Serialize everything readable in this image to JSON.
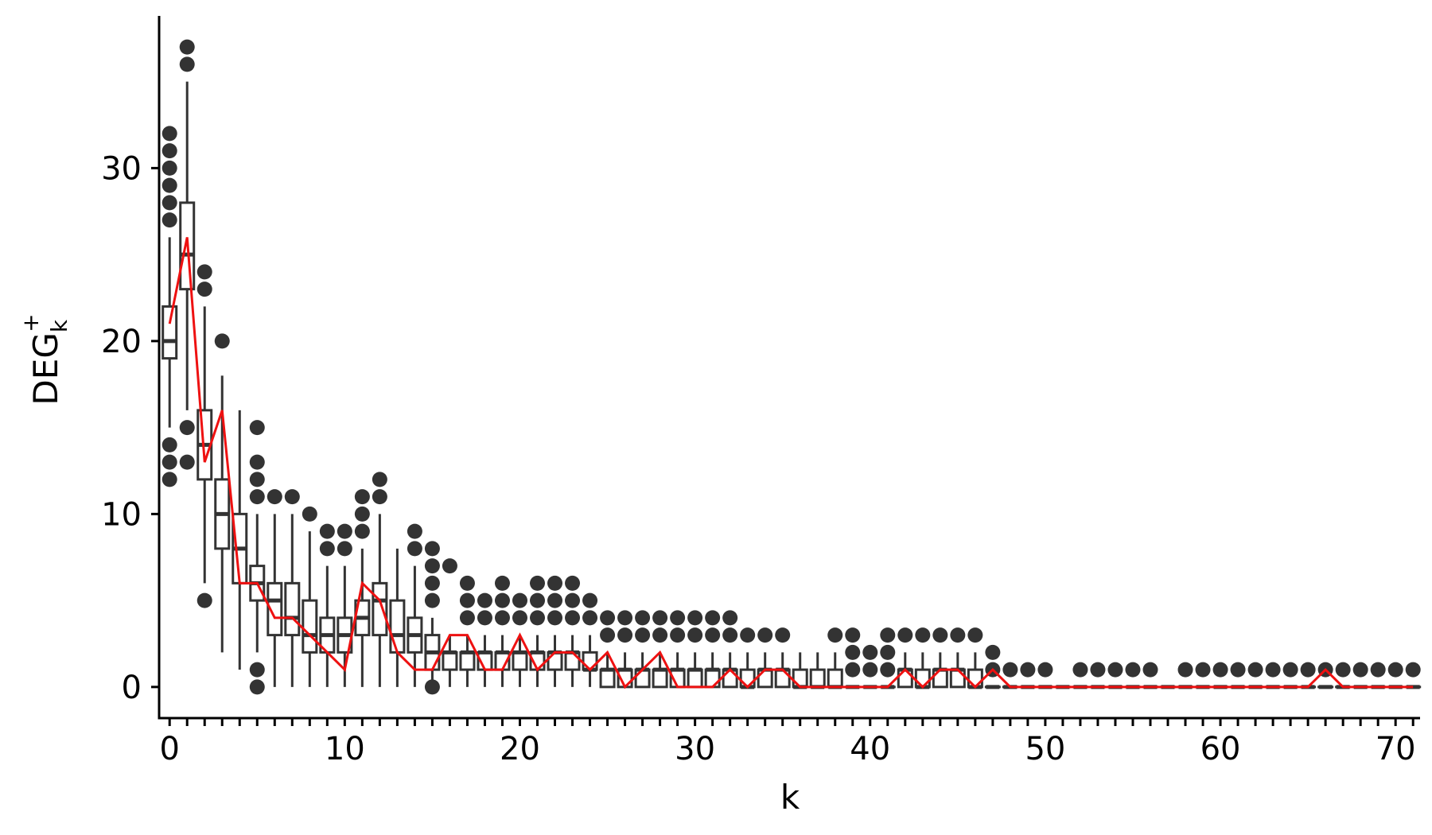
{
  "chart_data": {
    "type": "box",
    "xlabel": "k",
    "ylabel": {
      "base": "DEG",
      "superscript": "+",
      "subscript": "k"
    },
    "xlim": [
      -0.6,
      71.4
    ],
    "ylim": [
      -1.8,
      38.8
    ],
    "x_ticks": [
      0,
      10,
      20,
      30,
      40,
      50,
      60,
      70
    ],
    "y_ticks": [
      0,
      10,
      20,
      30
    ],
    "grid": false,
    "legend": "none",
    "colors": {
      "box": "#333333",
      "outlier": "#333333",
      "median_line": "#ee1111",
      "axis": "#000000"
    },
    "boxes": [
      {
        "k": 0,
        "q1": 19,
        "median": 20,
        "q3": 22,
        "whisker_low": 15,
        "whisker_high": 26,
        "outliers": [
          12,
          13,
          14,
          27,
          28,
          29,
          30,
          31,
          32
        ]
      },
      {
        "k": 1,
        "q1": 23,
        "median": 25,
        "q3": 28,
        "whisker_low": 16,
        "whisker_high": 35,
        "outliers": [
          13,
          15,
          36,
          37
        ]
      },
      {
        "k": 2,
        "q1": 12,
        "median": 14,
        "q3": 16,
        "whisker_low": 6,
        "whisker_high": 22,
        "outliers": [
          5,
          23,
          24
        ]
      },
      {
        "k": 3,
        "q1": 8,
        "median": 10,
        "q3": 12,
        "whisker_low": 2,
        "whisker_high": 18,
        "outliers": [
          20
        ]
      },
      {
        "k": 4,
        "q1": 6,
        "median": 8,
        "q3": 10,
        "whisker_low": 1,
        "whisker_high": 16,
        "outliers": []
      },
      {
        "k": 5,
        "q1": 5,
        "median": 6,
        "q3": 7,
        "whisker_low": 2,
        "whisker_high": 10,
        "outliers": [
          0,
          1,
          11,
          12,
          13,
          15
        ]
      },
      {
        "k": 6,
        "q1": 3,
        "median": 5,
        "q3": 6,
        "whisker_low": 0,
        "whisker_high": 10,
        "outliers": [
          11
        ]
      },
      {
        "k": 7,
        "q1": 3,
        "median": 4,
        "q3": 6,
        "whisker_low": 0,
        "whisker_high": 10,
        "outliers": [
          11
        ]
      },
      {
        "k": 8,
        "q1": 2,
        "median": 3,
        "q3": 5,
        "whisker_low": 0,
        "whisker_high": 9,
        "outliers": [
          10
        ]
      },
      {
        "k": 9,
        "q1": 2,
        "median": 3,
        "q3": 4,
        "whisker_low": 0,
        "whisker_high": 7,
        "outliers": [
          8,
          9
        ]
      },
      {
        "k": 10,
        "q1": 2,
        "median": 3,
        "q3": 4,
        "whisker_low": 0,
        "whisker_high": 7,
        "outliers": [
          8,
          9
        ]
      },
      {
        "k": 11,
        "q1": 3,
        "median": 4,
        "q3": 5,
        "whisker_low": 0,
        "whisker_high": 8,
        "outliers": [
          9,
          10,
          11
        ]
      },
      {
        "k": 12,
        "q1": 3,
        "median": 5,
        "q3": 6,
        "whisker_low": 0,
        "whisker_high": 10,
        "outliers": [
          11,
          12
        ]
      },
      {
        "k": 13,
        "q1": 2,
        "median": 3,
        "q3": 5,
        "whisker_low": 0,
        "whisker_high": 8,
        "outliers": []
      },
      {
        "k": 14,
        "q1": 2,
        "median": 3,
        "q3": 4,
        "whisker_low": 0,
        "whisker_high": 7,
        "outliers": [
          8,
          9
        ]
      },
      {
        "k": 15,
        "q1": 1,
        "median": 2,
        "q3": 3,
        "whisker_low": 0,
        "whisker_high": 4,
        "outliers": [
          0,
          5,
          6,
          7,
          8
        ]
      },
      {
        "k": 16,
        "q1": 1,
        "median": 2,
        "q3": 2,
        "whisker_low": 0,
        "whisker_high": 3,
        "outliers": [
          7
        ]
      },
      {
        "k": 17,
        "q1": 1,
        "median": 2,
        "q3": 2,
        "whisker_low": 0,
        "whisker_high": 3,
        "outliers": [
          4,
          5,
          6
        ]
      },
      {
        "k": 18,
        "q1": 1,
        "median": 2,
        "q3": 2,
        "whisker_low": 0,
        "whisker_high": 3,
        "outliers": [
          4,
          5
        ]
      },
      {
        "k": 19,
        "q1": 1,
        "median": 2,
        "q3": 2,
        "whisker_low": 0,
        "whisker_high": 3,
        "outliers": [
          4,
          5,
          6
        ]
      },
      {
        "k": 20,
        "q1": 1,
        "median": 2,
        "q3": 2,
        "whisker_low": 0,
        "whisker_high": 3,
        "outliers": [
          4,
          5
        ]
      },
      {
        "k": 21,
        "q1": 1,
        "median": 2,
        "q3": 2,
        "whisker_low": 0,
        "whisker_high": 3,
        "outliers": [
          4,
          5,
          6
        ]
      },
      {
        "k": 22,
        "q1": 1,
        "median": 2,
        "q3": 2,
        "whisker_low": 0,
        "whisker_high": 3,
        "outliers": [
          4,
          5,
          6
        ]
      },
      {
        "k": 23,
        "q1": 1,
        "median": 2,
        "q3": 2,
        "whisker_low": 0,
        "whisker_high": 3,
        "outliers": [
          4,
          5,
          6
        ]
      },
      {
        "k": 24,
        "q1": 1,
        "median": 1,
        "q3": 2,
        "whisker_low": 0,
        "whisker_high": 3,
        "outliers": [
          4,
          5
        ]
      },
      {
        "k": 25,
        "q1": 0,
        "median": 1,
        "q3": 1,
        "whisker_low": 0,
        "whisker_high": 2,
        "outliers": [
          3,
          4
        ]
      },
      {
        "k": 26,
        "q1": 0,
        "median": 1,
        "q3": 1,
        "whisker_low": 0,
        "whisker_high": 2,
        "outliers": [
          3,
          4
        ]
      },
      {
        "k": 27,
        "q1": 0,
        "median": 1,
        "q3": 1,
        "whisker_low": 0,
        "whisker_high": 2,
        "outliers": [
          3,
          4
        ]
      },
      {
        "k": 28,
        "q1": 0,
        "median": 1,
        "q3": 1,
        "whisker_low": 0,
        "whisker_high": 2,
        "outliers": [
          3,
          4
        ]
      },
      {
        "k": 29,
        "q1": 0,
        "median": 1,
        "q3": 1,
        "whisker_low": 0,
        "whisker_high": 2,
        "outliers": [
          3,
          4
        ]
      },
      {
        "k": 30,
        "q1": 0,
        "median": 1,
        "q3": 1,
        "whisker_low": 0,
        "whisker_high": 2,
        "outliers": [
          3,
          4
        ]
      },
      {
        "k": 31,
        "q1": 0,
        "median": 1,
        "q3": 1,
        "whisker_low": 0,
        "whisker_high": 2,
        "outliers": [
          3,
          4
        ]
      },
      {
        "k": 32,
        "q1": 0,
        "median": 1,
        "q3": 1,
        "whisker_low": 0,
        "whisker_high": 2,
        "outliers": [
          3,
          4
        ]
      },
      {
        "k": 33,
        "q1": 0,
        "median": 0,
        "q3": 1,
        "whisker_low": 0,
        "whisker_high": 2,
        "outliers": [
          3
        ]
      },
      {
        "k": 34,
        "q1": 0,
        "median": 1,
        "q3": 1,
        "whisker_low": 0,
        "whisker_high": 2,
        "outliers": [
          3
        ]
      },
      {
        "k": 35,
        "q1": 0,
        "median": 1,
        "q3": 1,
        "whisker_low": 0,
        "whisker_high": 2,
        "outliers": [
          3
        ]
      },
      {
        "k": 36,
        "q1": 0,
        "median": 0,
        "q3": 1,
        "whisker_low": 0,
        "whisker_high": 2,
        "outliers": []
      },
      {
        "k": 37,
        "q1": 0,
        "median": 0,
        "q3": 1,
        "whisker_low": 0,
        "whisker_high": 2,
        "outliers": []
      },
      {
        "k": 38,
        "q1": 0,
        "median": 0,
        "q3": 1,
        "whisker_low": 0,
        "whisker_high": 2,
        "outliers": [
          3
        ]
      },
      {
        "k": 39,
        "q1": 0,
        "median": 0,
        "q3": 0,
        "whisker_low": 0,
        "whisker_high": 0,
        "outliers": [
          1,
          2,
          3
        ]
      },
      {
        "k": 40,
        "q1": 0,
        "median": 0,
        "q3": 0,
        "whisker_low": 0,
        "whisker_high": 0,
        "outliers": [
          1,
          2
        ]
      },
      {
        "k": 41,
        "q1": 0,
        "median": 0,
        "q3": 0,
        "whisker_low": 0,
        "whisker_high": 0,
        "outliers": [
          1,
          2,
          3
        ]
      },
      {
        "k": 42,
        "q1": 0,
        "median": 1,
        "q3": 1,
        "whisker_low": 0,
        "whisker_high": 2,
        "outliers": [
          3
        ]
      },
      {
        "k": 43,
        "q1": 0,
        "median": 0,
        "q3": 1,
        "whisker_low": 0,
        "whisker_high": 2,
        "outliers": [
          3
        ]
      },
      {
        "k": 44,
        "q1": 0,
        "median": 1,
        "q3": 1,
        "whisker_low": 0,
        "whisker_high": 2,
        "outliers": [
          3
        ]
      },
      {
        "k": 45,
        "q1": 0,
        "median": 1,
        "q3": 1,
        "whisker_low": 0,
        "whisker_high": 2,
        "outliers": [
          3
        ]
      },
      {
        "k": 46,
        "q1": 0,
        "median": 0,
        "q3": 1,
        "whisker_low": 0,
        "whisker_high": 2,
        "outliers": [
          3
        ]
      },
      {
        "k": 47,
        "q1": 0,
        "median": 0,
        "q3": 0,
        "whisker_low": 0,
        "whisker_high": 0,
        "outliers": [
          1,
          2
        ]
      },
      {
        "k": 48,
        "q1": 0,
        "median": 0,
        "q3": 0,
        "whisker_low": 0,
        "whisker_high": 0,
        "outliers": [
          1
        ]
      },
      {
        "k": 49,
        "q1": 0,
        "median": 0,
        "q3": 0,
        "whisker_low": 0,
        "whisker_high": 0,
        "outliers": [
          1
        ]
      },
      {
        "k": 50,
        "q1": 0,
        "median": 0,
        "q3": 0,
        "whisker_low": 0,
        "whisker_high": 0,
        "outliers": [
          1
        ]
      },
      {
        "k": 51,
        "q1": 0,
        "median": 0,
        "q3": 0,
        "whisker_low": 0,
        "whisker_high": 0,
        "outliers": []
      },
      {
        "k": 52,
        "q1": 0,
        "median": 0,
        "q3": 0,
        "whisker_low": 0,
        "whisker_high": 0,
        "outliers": [
          1
        ]
      },
      {
        "k": 53,
        "q1": 0,
        "median": 0,
        "q3": 0,
        "whisker_low": 0,
        "whisker_high": 0,
        "outliers": [
          1
        ]
      },
      {
        "k": 54,
        "q1": 0,
        "median": 0,
        "q3": 0,
        "whisker_low": 0,
        "whisker_high": 0,
        "outliers": [
          1
        ]
      },
      {
        "k": 55,
        "q1": 0,
        "median": 0,
        "q3": 0,
        "whisker_low": 0,
        "whisker_high": 0,
        "outliers": [
          1
        ]
      },
      {
        "k": 56,
        "q1": 0,
        "median": 0,
        "q3": 0,
        "whisker_low": 0,
        "whisker_high": 0,
        "outliers": [
          1
        ]
      },
      {
        "k": 57,
        "q1": 0,
        "median": 0,
        "q3": 0,
        "whisker_low": 0,
        "whisker_high": 0,
        "outliers": []
      },
      {
        "k": 58,
        "q1": 0,
        "median": 0,
        "q3": 0,
        "whisker_low": 0,
        "whisker_high": 0,
        "outliers": [
          1
        ]
      },
      {
        "k": 59,
        "q1": 0,
        "median": 0,
        "q3": 0,
        "whisker_low": 0,
        "whisker_high": 0,
        "outliers": [
          1
        ]
      },
      {
        "k": 60,
        "q1": 0,
        "median": 0,
        "q3": 0,
        "whisker_low": 0,
        "whisker_high": 0,
        "outliers": [
          1
        ]
      },
      {
        "k": 61,
        "q1": 0,
        "median": 0,
        "q3": 0,
        "whisker_low": 0,
        "whisker_high": 0,
        "outliers": [
          1
        ]
      },
      {
        "k": 62,
        "q1": 0,
        "median": 0,
        "q3": 0,
        "whisker_low": 0,
        "whisker_high": 0,
        "outliers": [
          1
        ]
      },
      {
        "k": 63,
        "q1": 0,
        "median": 0,
        "q3": 0,
        "whisker_low": 0,
        "whisker_high": 0,
        "outliers": [
          1
        ]
      },
      {
        "k": 64,
        "q1": 0,
        "median": 0,
        "q3": 0,
        "whisker_low": 0,
        "whisker_high": 0,
        "outliers": [
          1
        ]
      },
      {
        "k": 65,
        "q1": 0,
        "median": 0,
        "q3": 0,
        "whisker_low": 0,
        "whisker_high": 0,
        "outliers": [
          1
        ]
      },
      {
        "k": 66,
        "q1": 0,
        "median": 0,
        "q3": 0,
        "whisker_low": 0,
        "whisker_high": 0,
        "outliers": [
          1
        ]
      },
      {
        "k": 67,
        "q1": 0,
        "median": 0,
        "q3": 0,
        "whisker_low": 0,
        "whisker_high": 0,
        "outliers": [
          1
        ]
      },
      {
        "k": 68,
        "q1": 0,
        "median": 0,
        "q3": 0,
        "whisker_low": 0,
        "whisker_high": 0,
        "outliers": [
          1
        ]
      },
      {
        "k": 69,
        "q1": 0,
        "median": 0,
        "q3": 0,
        "whisker_low": 0,
        "whisker_high": 0,
        "outliers": [
          1
        ]
      },
      {
        "k": 70,
        "q1": 0,
        "median": 0,
        "q3": 0,
        "whisker_low": 0,
        "whisker_high": 0,
        "outliers": [
          1
        ]
      },
      {
        "k": 71,
        "q1": 0,
        "median": 0,
        "q3": 0,
        "whisker_low": 0,
        "whisker_high": 0,
        "outliers": [
          1
        ]
      }
    ],
    "median_line": {
      "x": [
        0,
        1,
        2,
        3,
        4,
        5,
        6,
        7,
        8,
        9,
        10,
        11,
        12,
        13,
        14,
        15,
        16,
        17,
        18,
        19,
        20,
        21,
        22,
        23,
        24,
        25,
        26,
        27,
        28,
        29,
        30,
        31,
        32,
        33,
        34,
        35,
        36,
        37,
        38,
        39,
        40,
        41,
        42,
        43,
        44,
        45,
        46,
        47,
        48,
        49,
        50,
        51,
        52,
        53,
        54,
        55,
        56,
        57,
        58,
        59,
        60,
        61,
        62,
        63,
        64,
        65,
        66,
        67,
        68,
        69,
        70,
        71
      ],
      "y": [
        21,
        26,
        13,
        16,
        6,
        6,
        4,
        4,
        3,
        2,
        1,
        6,
        5,
        2,
        1,
        1,
        3,
        3,
        1,
        1,
        3,
        1,
        2,
        2,
        1,
        2,
        0,
        1,
        2,
        0,
        0,
        0,
        1,
        0,
        1,
        1,
        0,
        0,
        0,
        0,
        0,
        0,
        1,
        0,
        1,
        1,
        0,
        1,
        0,
        0,
        0,
        0,
        0,
        0,
        0,
        0,
        0,
        0,
        0,
        0,
        0,
        0,
        0,
        0,
        0,
        0,
        1,
        0,
        0,
        0,
        0,
        0
      ]
    }
  }
}
